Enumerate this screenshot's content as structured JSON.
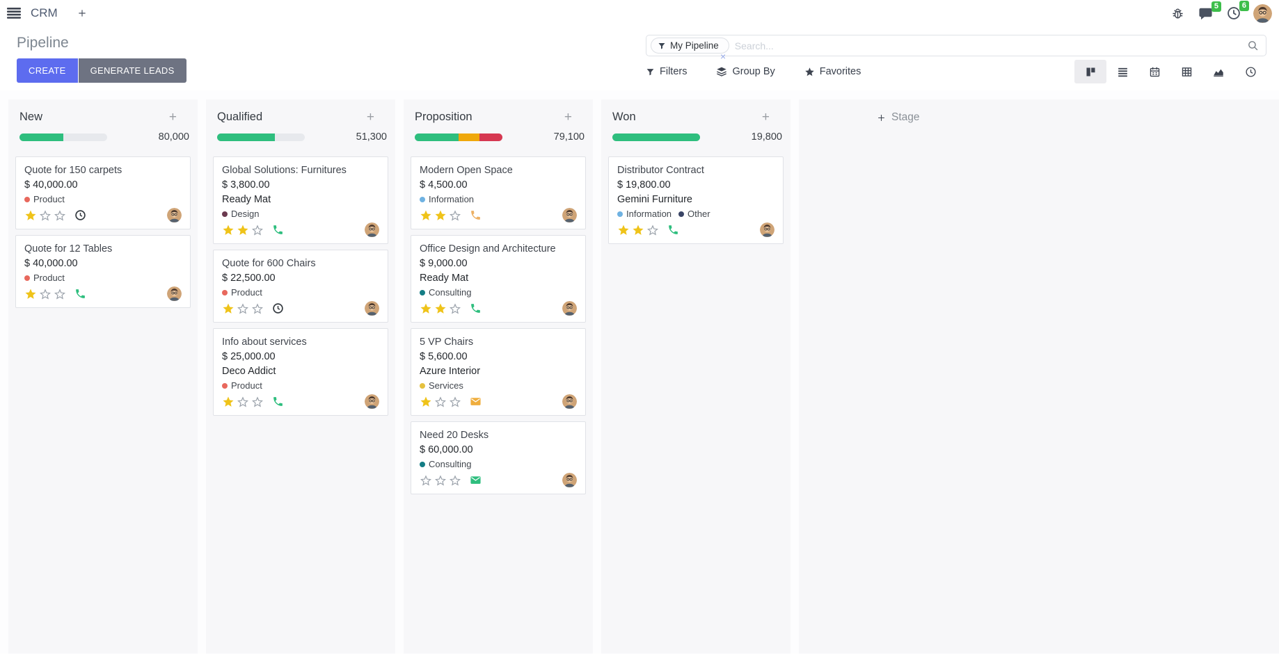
{
  "navbar": {
    "app_name": "CRM",
    "messages_badge": "5",
    "activities_badge": "6"
  },
  "control_panel": {
    "title": "Pipeline",
    "buttons": {
      "create": "CREATE",
      "generate_leads": "GENERATE LEADS"
    },
    "search": {
      "facet_label": "My Pipeline",
      "placeholder": "Search...",
      "facet_remove": "×"
    },
    "menus": {
      "filters": "Filters",
      "group_by": "Group By",
      "favorites": "Favorites"
    },
    "view_switcher": [
      "kanban",
      "list",
      "calendar",
      "pivot",
      "graph",
      "activity"
    ],
    "active_view": "kanban"
  },
  "board": {
    "quick_add_label": "+",
    "add_stage_label": "Stage",
    "columns": [
      {
        "name": "New",
        "total": "80,000",
        "progress": [
          {
            "color": "#2EBE7E",
            "pct": 50
          }
        ],
        "cards": [
          {
            "title": "Quote for 150 carpets",
            "amount": "$ 40,000.00",
            "partner": "",
            "tags": [
              {
                "label": "Product",
                "color": "#E8685D"
              }
            ],
            "stars": 1,
            "activity": {
              "type": "clock",
              "color": "#343A40"
            }
          },
          {
            "title": "Quote for 12 Tables",
            "amount": "$ 40,000.00",
            "partner": "",
            "tags": [
              {
                "label": "Product",
                "color": "#E8685D"
              }
            ],
            "stars": 1,
            "activity": {
              "type": "phone",
              "color": "#2EBE7E"
            }
          }
        ]
      },
      {
        "name": "Qualified",
        "total": "51,300",
        "progress": [
          {
            "color": "#2EBE7E",
            "pct": 66
          }
        ],
        "cards": [
          {
            "title": "Global Solutions: Furnitures",
            "amount": "$ 3,800.00",
            "partner": "Ready Mat",
            "tags": [
              {
                "label": "Design",
                "color": "#6B3A4F"
              }
            ],
            "stars": 2,
            "activity": {
              "type": "phone",
              "color": "#2EBE7E"
            }
          },
          {
            "title": "Quote for 600 Chairs",
            "amount": "$ 22,500.00",
            "partner": "",
            "tags": [
              {
                "label": "Product",
                "color": "#E8685D"
              }
            ],
            "stars": 1,
            "activity": {
              "type": "clock",
              "color": "#343A40"
            }
          },
          {
            "title": "Info about services",
            "amount": "$ 25,000.00",
            "partner": "Deco Addict",
            "tags": [
              {
                "label": "Product",
                "color": "#E8685D"
              }
            ],
            "stars": 1,
            "activity": {
              "type": "phone",
              "color": "#2EBE7E"
            }
          }
        ]
      },
      {
        "name": "Proposition",
        "total": "79,100",
        "progress": [
          {
            "color": "#2EBE7E",
            "pct": 50
          },
          {
            "color": "#EFA80B",
            "pct": 24
          },
          {
            "color": "#D63851",
            "pct": 26
          }
        ],
        "cards": [
          {
            "title": "Modern Open Space",
            "amount": "$ 4,500.00",
            "partner": "",
            "tags": [
              {
                "label": "Information",
                "color": "#6FB2E2"
              }
            ],
            "stars": 2,
            "activity": {
              "type": "phone",
              "color": "#EDB063"
            }
          },
          {
            "title": "Office Design and Architecture",
            "amount": "$ 9,000.00",
            "partner": "Ready Mat",
            "tags": [
              {
                "label": "Consulting",
                "color": "#147D85"
              }
            ],
            "stars": 2,
            "activity": {
              "type": "phone",
              "color": "#2EBE7E"
            }
          },
          {
            "title": "5 VP Chairs",
            "amount": "$ 5,600.00",
            "partner": "Azure Interior",
            "tags": [
              {
                "label": "Services",
                "color": "#E5C13F"
              }
            ],
            "stars": 1,
            "activity": {
              "type": "envelope",
              "color": "#EFAD3D"
            }
          },
          {
            "title": "Need 20 Desks",
            "amount": "$ 60,000.00",
            "partner": "",
            "tags": [
              {
                "label": "Consulting",
                "color": "#147D85"
              }
            ],
            "stars": 0,
            "activity": {
              "type": "envelope",
              "color": "#2EBE7E"
            }
          }
        ]
      },
      {
        "name": "Won",
        "total": "19,800",
        "progress": [
          {
            "color": "#2EBE7E",
            "pct": 100
          }
        ],
        "cards": [
          {
            "title": "Distributor Contract",
            "amount": "$ 19,800.00",
            "partner": "Gemini Furniture",
            "tags": [
              {
                "label": "Information",
                "color": "#6FB2E2"
              },
              {
                "label": "Other",
                "color": "#3A4566"
              }
            ],
            "stars": 2,
            "activity": {
              "type": "phone",
              "color": "#2EBE7E"
            }
          }
        ]
      }
    ]
  },
  "colors": {
    "primary_button": "#5D6CEF",
    "secondary_button": "#6E7382",
    "badge_green": "#3DBE4B",
    "progress_green": "#2EBE7E",
    "progress_yellow": "#EFA80B",
    "progress_red": "#D63851",
    "star_gold": "#EFC319"
  }
}
